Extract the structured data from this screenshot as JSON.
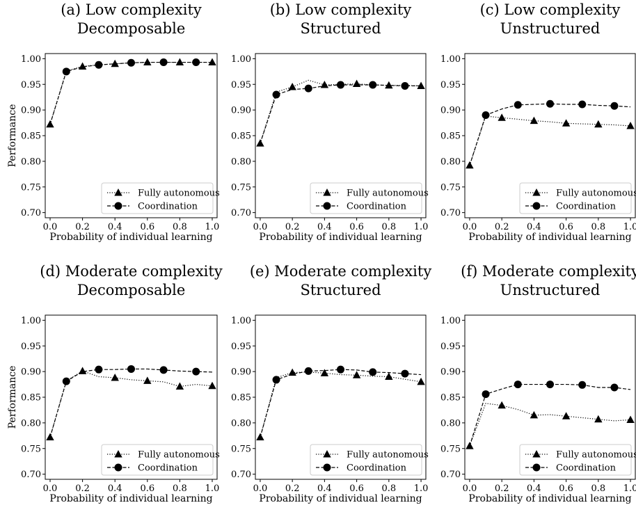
{
  "figure": {
    "x_label": "Probability of individual learning",
    "y_label": "Performance",
    "legend": [
      "Fully autonomous",
      "Coordination"
    ]
  },
  "chart_data": [
    {
      "type": "line",
      "title_line1": "(a) Low complexity",
      "title_line2": "Decomposable",
      "xlabel": "Probability of individual learning",
      "ylabel": "Performance",
      "xlim": [
        -0.03,
        1.03
      ],
      "ylim": [
        0.69,
        1.01
      ],
      "xticks": [
        "0.0",
        "0.2",
        "0.4",
        "0.6",
        "0.8",
        "1.0"
      ],
      "yticks": [
        "0.70",
        "0.75",
        "0.80",
        "0.85",
        "0.90",
        "0.95",
        "1.00"
      ],
      "grid": false,
      "legend_position": "lower-right",
      "x": [
        0.0,
        0.1,
        0.2,
        0.3,
        0.4,
        0.5,
        0.6,
        0.7,
        0.8,
        0.9,
        1.0
      ],
      "series": [
        {
          "name": "Fully autonomous",
          "marker": "triangle",
          "linestyle": "dotted",
          "marker_every": 2,
          "values": [
            0.872,
            0.976,
            0.985,
            0.988,
            0.99,
            0.992,
            0.993,
            0.993,
            0.993,
            0.993,
            0.993
          ]
        },
        {
          "name": "Coordination",
          "marker": "circle",
          "linestyle": "dashed",
          "marker_every": 2,
          "marker_start": 1,
          "values": [
            0.872,
            0.975,
            0.984,
            0.988,
            0.99,
            0.992,
            0.993,
            0.993,
            0.993,
            0.993,
            0.993
          ]
        }
      ]
    },
    {
      "type": "line",
      "title_line1": "(b) Low complexity",
      "title_line2": "Structured",
      "xlabel": "Probability of individual learning",
      "ylabel": "",
      "xlim": [
        -0.03,
        1.03
      ],
      "ylim": [
        0.69,
        1.01
      ],
      "xticks": [
        "0.0",
        "0.2",
        "0.4",
        "0.6",
        "0.8",
        "1.0"
      ],
      "yticks": [
        "0.70",
        "0.75",
        "0.80",
        "0.85",
        "0.90",
        "0.95",
        "1.00"
      ],
      "grid": false,
      "legend_position": "lower-right",
      "x": [
        0.0,
        0.1,
        0.2,
        0.3,
        0.4,
        0.5,
        0.6,
        0.7,
        0.8,
        0.9,
        1.0
      ],
      "series": [
        {
          "name": "Fully autonomous",
          "marker": "triangle",
          "linestyle": "dotted",
          "marker_every": 2,
          "values": [
            0.835,
            0.935,
            0.945,
            0.958,
            0.949,
            0.95,
            0.951,
            0.949,
            0.948,
            0.948,
            0.947
          ]
        },
        {
          "name": "Coordination",
          "marker": "circle",
          "linestyle": "dashed",
          "marker_every": 2,
          "marker_start": 1,
          "values": [
            0.835,
            0.93,
            0.94,
            0.942,
            0.947,
            0.949,
            0.949,
            0.949,
            0.948,
            0.947,
            0.947
          ]
        }
      ]
    },
    {
      "type": "line",
      "title_line1": "(c) Low complexity",
      "title_line2": "Unstructured",
      "xlabel": "Probability of individual learning",
      "ylabel": "",
      "xlim": [
        -0.03,
        1.03
      ],
      "ylim": [
        0.69,
        1.01
      ],
      "xticks": [
        "0.0",
        "0.2",
        "0.4",
        "0.6",
        "0.8",
        "1.0"
      ],
      "yticks": [
        "0.70",
        "0.75",
        "0.80",
        "0.85",
        "0.90",
        "0.95",
        "1.00"
      ],
      "grid": false,
      "legend_position": "lower-right",
      "x": [
        0.0,
        0.1,
        0.2,
        0.3,
        0.4,
        0.5,
        0.6,
        0.7,
        0.8,
        0.9,
        1.0
      ],
      "series": [
        {
          "name": "Fully autonomous",
          "marker": "triangle",
          "linestyle": "dotted",
          "marker_every": 2,
          "values": [
            0.792,
            0.888,
            0.885,
            0.882,
            0.879,
            0.877,
            0.874,
            0.873,
            0.872,
            0.871,
            0.869
          ]
        },
        {
          "name": "Coordination",
          "marker": "circle",
          "linestyle": "dashed",
          "marker_every": 2,
          "marker_start": 1,
          "values": [
            0.792,
            0.89,
            0.902,
            0.91,
            0.911,
            0.912,
            0.911,
            0.911,
            0.909,
            0.908,
            0.906
          ]
        }
      ]
    },
    {
      "type": "line",
      "title_line1": "(d) Moderate complexity",
      "title_line2": "Decomposable",
      "xlabel": "Probability of individual learning",
      "ylabel": "Performance",
      "xlim": [
        -0.03,
        1.03
      ],
      "ylim": [
        0.69,
        1.01
      ],
      "xticks": [
        "0.0",
        "0.2",
        "0.4",
        "0.6",
        "0.8",
        "1.0"
      ],
      "yticks": [
        "0.70",
        "0.75",
        "0.80",
        "0.85",
        "0.90",
        "0.95",
        "1.00"
      ],
      "grid": false,
      "legend_position": "lower-right",
      "x": [
        0.0,
        0.1,
        0.2,
        0.3,
        0.4,
        0.5,
        0.6,
        0.7,
        0.8,
        0.9,
        1.0
      ],
      "series": [
        {
          "name": "Fully autonomous",
          "marker": "triangle",
          "linestyle": "dotted",
          "marker_every": 2,
          "values": [
            0.772,
            0.882,
            0.901,
            0.89,
            0.888,
            0.884,
            0.882,
            0.88,
            0.871,
            0.875,
            0.872
          ]
        },
        {
          "name": "Coordination",
          "marker": "circle",
          "linestyle": "dashed",
          "marker_every": 2,
          "marker_start": 1,
          "values": [
            0.772,
            0.881,
            0.9,
            0.904,
            0.904,
            0.905,
            0.905,
            0.903,
            0.901,
            0.9,
            0.899
          ]
        }
      ]
    },
    {
      "type": "line",
      "title_line1": "(e) Moderate complexity",
      "title_line2": "Structured",
      "xlabel": "Probability of individual learning",
      "ylabel": "",
      "xlim": [
        -0.03,
        1.03
      ],
      "ylim": [
        0.69,
        1.01
      ],
      "xticks": [
        "0.0",
        "0.2",
        "0.4",
        "0.6",
        "0.8",
        "1.0"
      ],
      "yticks": [
        "0.70",
        "0.75",
        "0.80",
        "0.85",
        "0.90",
        "0.95",
        "1.00"
      ],
      "grid": false,
      "legend_position": "lower-right",
      "x": [
        0.0,
        0.1,
        0.2,
        0.3,
        0.4,
        0.5,
        0.6,
        0.7,
        0.8,
        0.9,
        1.0
      ],
      "series": [
        {
          "name": "Fully autonomous",
          "marker": "triangle",
          "linestyle": "dotted",
          "marker_every": 2,
          "values": [
            0.772,
            0.888,
            0.898,
            0.899,
            0.897,
            0.894,
            0.893,
            0.891,
            0.89,
            0.885,
            0.88
          ]
        },
        {
          "name": "Coordination",
          "marker": "circle",
          "linestyle": "dashed",
          "marker_every": 2,
          "marker_start": 1,
          "values": [
            0.772,
            0.884,
            0.895,
            0.901,
            0.902,
            0.904,
            0.903,
            0.899,
            0.898,
            0.896,
            0.894
          ]
        }
      ]
    },
    {
      "type": "line",
      "title_line1": "(f) Moderate complexity",
      "title_line2": "Unstructured",
      "xlabel": "Probability of individual learning",
      "ylabel": "",
      "xlim": [
        -0.03,
        1.03
      ],
      "ylim": [
        0.69,
        1.01
      ],
      "xticks": [
        "0.0",
        "0.2",
        "0.4",
        "0.6",
        "0.8",
        "1.0"
      ],
      "yticks": [
        "0.70",
        "0.75",
        "0.80",
        "0.85",
        "0.90",
        "0.95",
        "1.00"
      ],
      "grid": false,
      "legend_position": "lower-right",
      "x": [
        0.0,
        0.1,
        0.2,
        0.3,
        0.4,
        0.5,
        0.6,
        0.7,
        0.8,
        0.9,
        1.0
      ],
      "series": [
        {
          "name": "Fully autonomous",
          "marker": "triangle",
          "linestyle": "dotted",
          "marker_every": 2,
          "values": [
            0.755,
            0.838,
            0.834,
            0.826,
            0.815,
            0.816,
            0.813,
            0.81,
            0.807,
            0.804,
            0.806
          ]
        },
        {
          "name": "Coordination",
          "marker": "circle",
          "linestyle": "dashed",
          "marker_every": 2,
          "marker_start": 1,
          "values": [
            0.755,
            0.856,
            0.866,
            0.875,
            0.875,
            0.875,
            0.875,
            0.874,
            0.869,
            0.869,
            0.865
          ]
        }
      ]
    }
  ]
}
